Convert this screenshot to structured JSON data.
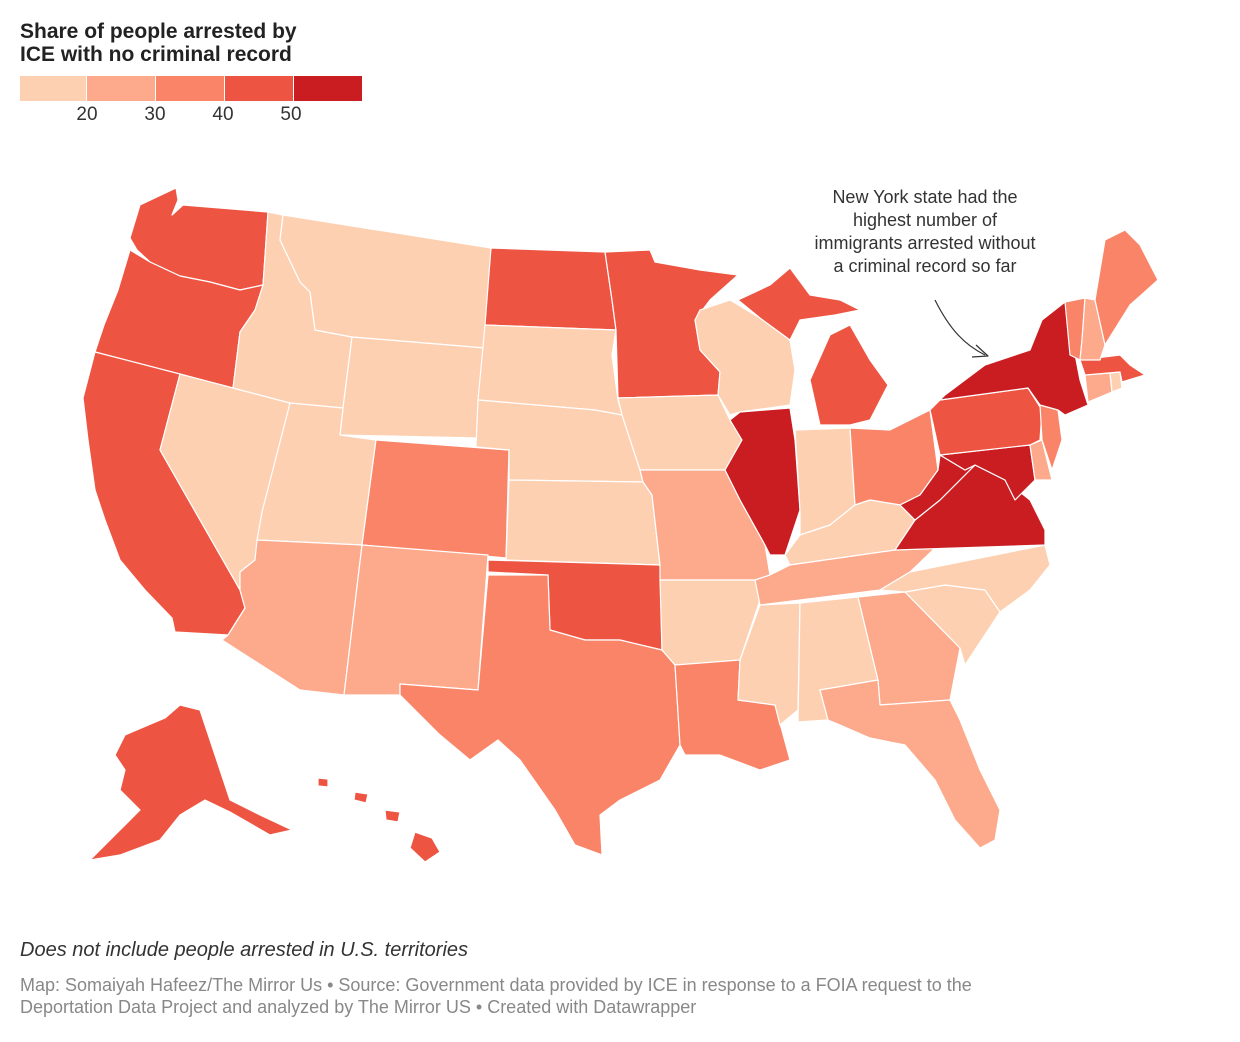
{
  "title": {
    "line1": "Share of people arrested by",
    "line2": "ICE with no criminal record"
  },
  "legend": {
    "colors": [
      "#fdd0b1",
      "#fca98c",
      "#f98468",
      "#ee5442",
      "#c91d22"
    ],
    "ticks": [
      "20",
      "30",
      "40",
      "50"
    ]
  },
  "map": {
    "bins": {
      "b1": "#fdd0b1",
      "b2": "#fca98c",
      "b3": "#f98468",
      "b4": "#ee5442",
      "b5": "#c91d22"
    },
    "states": [
      {
        "name": "Washington",
        "bin": "b4"
      },
      {
        "name": "Oregon",
        "bin": "b4"
      },
      {
        "name": "California",
        "bin": "b4"
      },
      {
        "name": "Nevada",
        "bin": "b1"
      },
      {
        "name": "Idaho",
        "bin": "b1"
      },
      {
        "name": "Montana",
        "bin": "b1"
      },
      {
        "name": "Wyoming",
        "bin": "b1"
      },
      {
        "name": "Utah",
        "bin": "b1"
      },
      {
        "name": "Arizona",
        "bin": "b2"
      },
      {
        "name": "Colorado",
        "bin": "b3"
      },
      {
        "name": "New Mexico",
        "bin": "b2"
      },
      {
        "name": "North Dakota",
        "bin": "b4"
      },
      {
        "name": "South Dakota",
        "bin": "b1"
      },
      {
        "name": "Nebraska",
        "bin": "b1"
      },
      {
        "name": "Kansas",
        "bin": "b1"
      },
      {
        "name": "Oklahoma",
        "bin": "b4"
      },
      {
        "name": "Texas",
        "bin": "b3"
      },
      {
        "name": "Minnesota",
        "bin": "b4"
      },
      {
        "name": "Iowa",
        "bin": "b1"
      },
      {
        "name": "Missouri",
        "bin": "b2"
      },
      {
        "name": "Arkansas",
        "bin": "b1"
      },
      {
        "name": "Louisiana",
        "bin": "b3"
      },
      {
        "name": "Wisconsin",
        "bin": "b1"
      },
      {
        "name": "Illinois",
        "bin": "b5"
      },
      {
        "name": "Michigan",
        "bin": "b4"
      },
      {
        "name": "Indiana",
        "bin": "b1"
      },
      {
        "name": "Ohio",
        "bin": "b3"
      },
      {
        "name": "Kentucky",
        "bin": "b1"
      },
      {
        "name": "Tennessee",
        "bin": "b2"
      },
      {
        "name": "Mississippi",
        "bin": "b1"
      },
      {
        "name": "Alabama",
        "bin": "b1"
      },
      {
        "name": "Georgia",
        "bin": "b2"
      },
      {
        "name": "Florida",
        "bin": "b2"
      },
      {
        "name": "South Carolina",
        "bin": "b1"
      },
      {
        "name": "North Carolina",
        "bin": "b1"
      },
      {
        "name": "Virginia",
        "bin": "b5"
      },
      {
        "name": "West Virginia",
        "bin": "b5"
      },
      {
        "name": "Maryland",
        "bin": "b5"
      },
      {
        "name": "Delaware",
        "bin": "b2"
      },
      {
        "name": "Pennsylvania",
        "bin": "b4"
      },
      {
        "name": "New Jersey",
        "bin": "b3"
      },
      {
        "name": "New York",
        "bin": "b5"
      },
      {
        "name": "Connecticut",
        "bin": "b2"
      },
      {
        "name": "Rhode Island",
        "bin": "b1"
      },
      {
        "name": "Massachusetts",
        "bin": "b4"
      },
      {
        "name": "Vermont",
        "bin": "b3"
      },
      {
        "name": "New Hampshire",
        "bin": "b2"
      },
      {
        "name": "Maine",
        "bin": "b3"
      },
      {
        "name": "Alaska",
        "bin": "b4"
      },
      {
        "name": "Hawaii",
        "bin": "b4"
      }
    ]
  },
  "annotation": {
    "line1": "New York state had the",
    "line2": "highest number of",
    "line3": "immigrants arrested without",
    "line4": "a criminal record so far"
  },
  "note": "Does not include people arrested in U.S. territories",
  "source": {
    "line1": "Map: Somaiyah Hafeez/The Mirror Us • Source: Government data provided by ICE in response to a FOIA request to the",
    "line2": "Deportation Data Project and analyzed by The Mirror US • Created with Datawrapper"
  }
}
